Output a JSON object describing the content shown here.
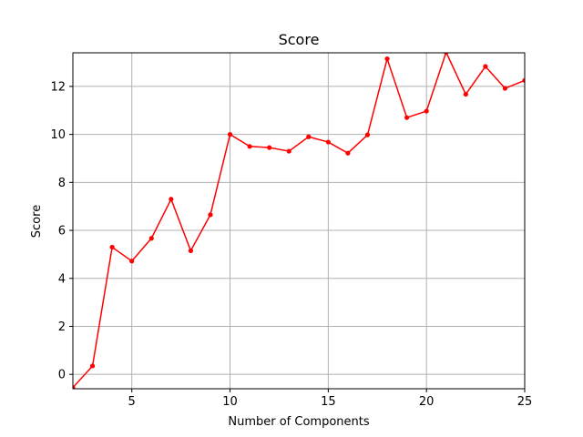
{
  "chart_data": {
    "type": "line",
    "title": "Score",
    "xlabel": "Number of Components",
    "ylabel": "Score",
    "xlim": [
      2,
      25
    ],
    "ylim": [
      -0.6,
      13.4
    ],
    "xticks": [
      5,
      10,
      15,
      20,
      25
    ],
    "yticks": [
      0,
      2,
      4,
      6,
      8,
      10,
      12
    ],
    "grid": true,
    "line_color": "#ff0000",
    "marker": "circle",
    "series": [
      {
        "x": [
          2,
          3,
          4,
          5,
          6,
          7,
          8,
          9,
          10,
          11,
          12,
          13,
          14,
          15,
          16,
          17,
          18,
          19,
          20,
          21,
          22,
          23,
          24,
          25
        ],
        "y": [
          -0.55,
          0.35,
          5.3,
          4.72,
          5.67,
          7.3,
          5.15,
          6.65,
          10.0,
          9.5,
          9.45,
          9.3,
          9.9,
          9.68,
          9.22,
          9.98,
          13.15,
          10.7,
          10.97,
          13.42,
          11.67,
          12.83,
          11.92,
          12.25
        ]
      }
    ]
  }
}
